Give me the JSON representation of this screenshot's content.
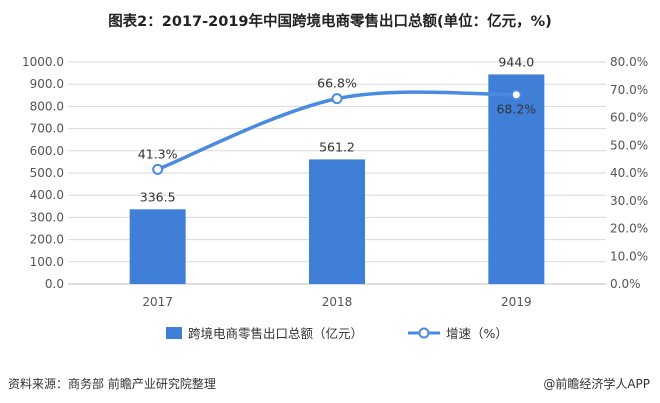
{
  "title": "图表2：2017-2019年中国跨境电商零售出口总额(单位：亿元，%)",
  "footer": {
    "source": "资料来源：商务部 前瞻产业研究院整理",
    "brand": "@前瞻经济学人APP"
  },
  "colors": {
    "bar": "#3F7FD8",
    "line": "#4A8AE0",
    "grid": "#D9D9D9",
    "axis": "#BFBFBF"
  },
  "chart_data": {
    "type": "bar",
    "categories": [
      "2017",
      "2018",
      "2019"
    ],
    "series": [
      {
        "name": "跨境电商零售出口总额（亿元）",
        "type": "bar",
        "axis": "left",
        "values": [
          336.5,
          561.2,
          944.0
        ],
        "labels": [
          "336.5",
          "561.2",
          "944.0"
        ]
      },
      {
        "name": "增速（%）",
        "type": "line",
        "axis": "right",
        "values": [
          41.3,
          66.8,
          68.2
        ],
        "labels": [
          "41.3%",
          "66.8%",
          "68.2%"
        ]
      }
    ],
    "y_left": {
      "range": [
        0,
        1000
      ],
      "ticks": [
        "0.0",
        "100.0",
        "200.0",
        "300.0",
        "400.0",
        "500.0",
        "600.0",
        "700.0",
        "800.0",
        "900.0",
        "1000.0"
      ]
    },
    "y_right": {
      "range": [
        0,
        80
      ],
      "ticks": [
        "0.0%",
        "10.0%",
        "20.0%",
        "30.0%",
        "40.0%",
        "50.0%",
        "60.0%",
        "70.0%",
        "80.0%"
      ]
    },
    "grid": true,
    "legend": "bottom"
  }
}
